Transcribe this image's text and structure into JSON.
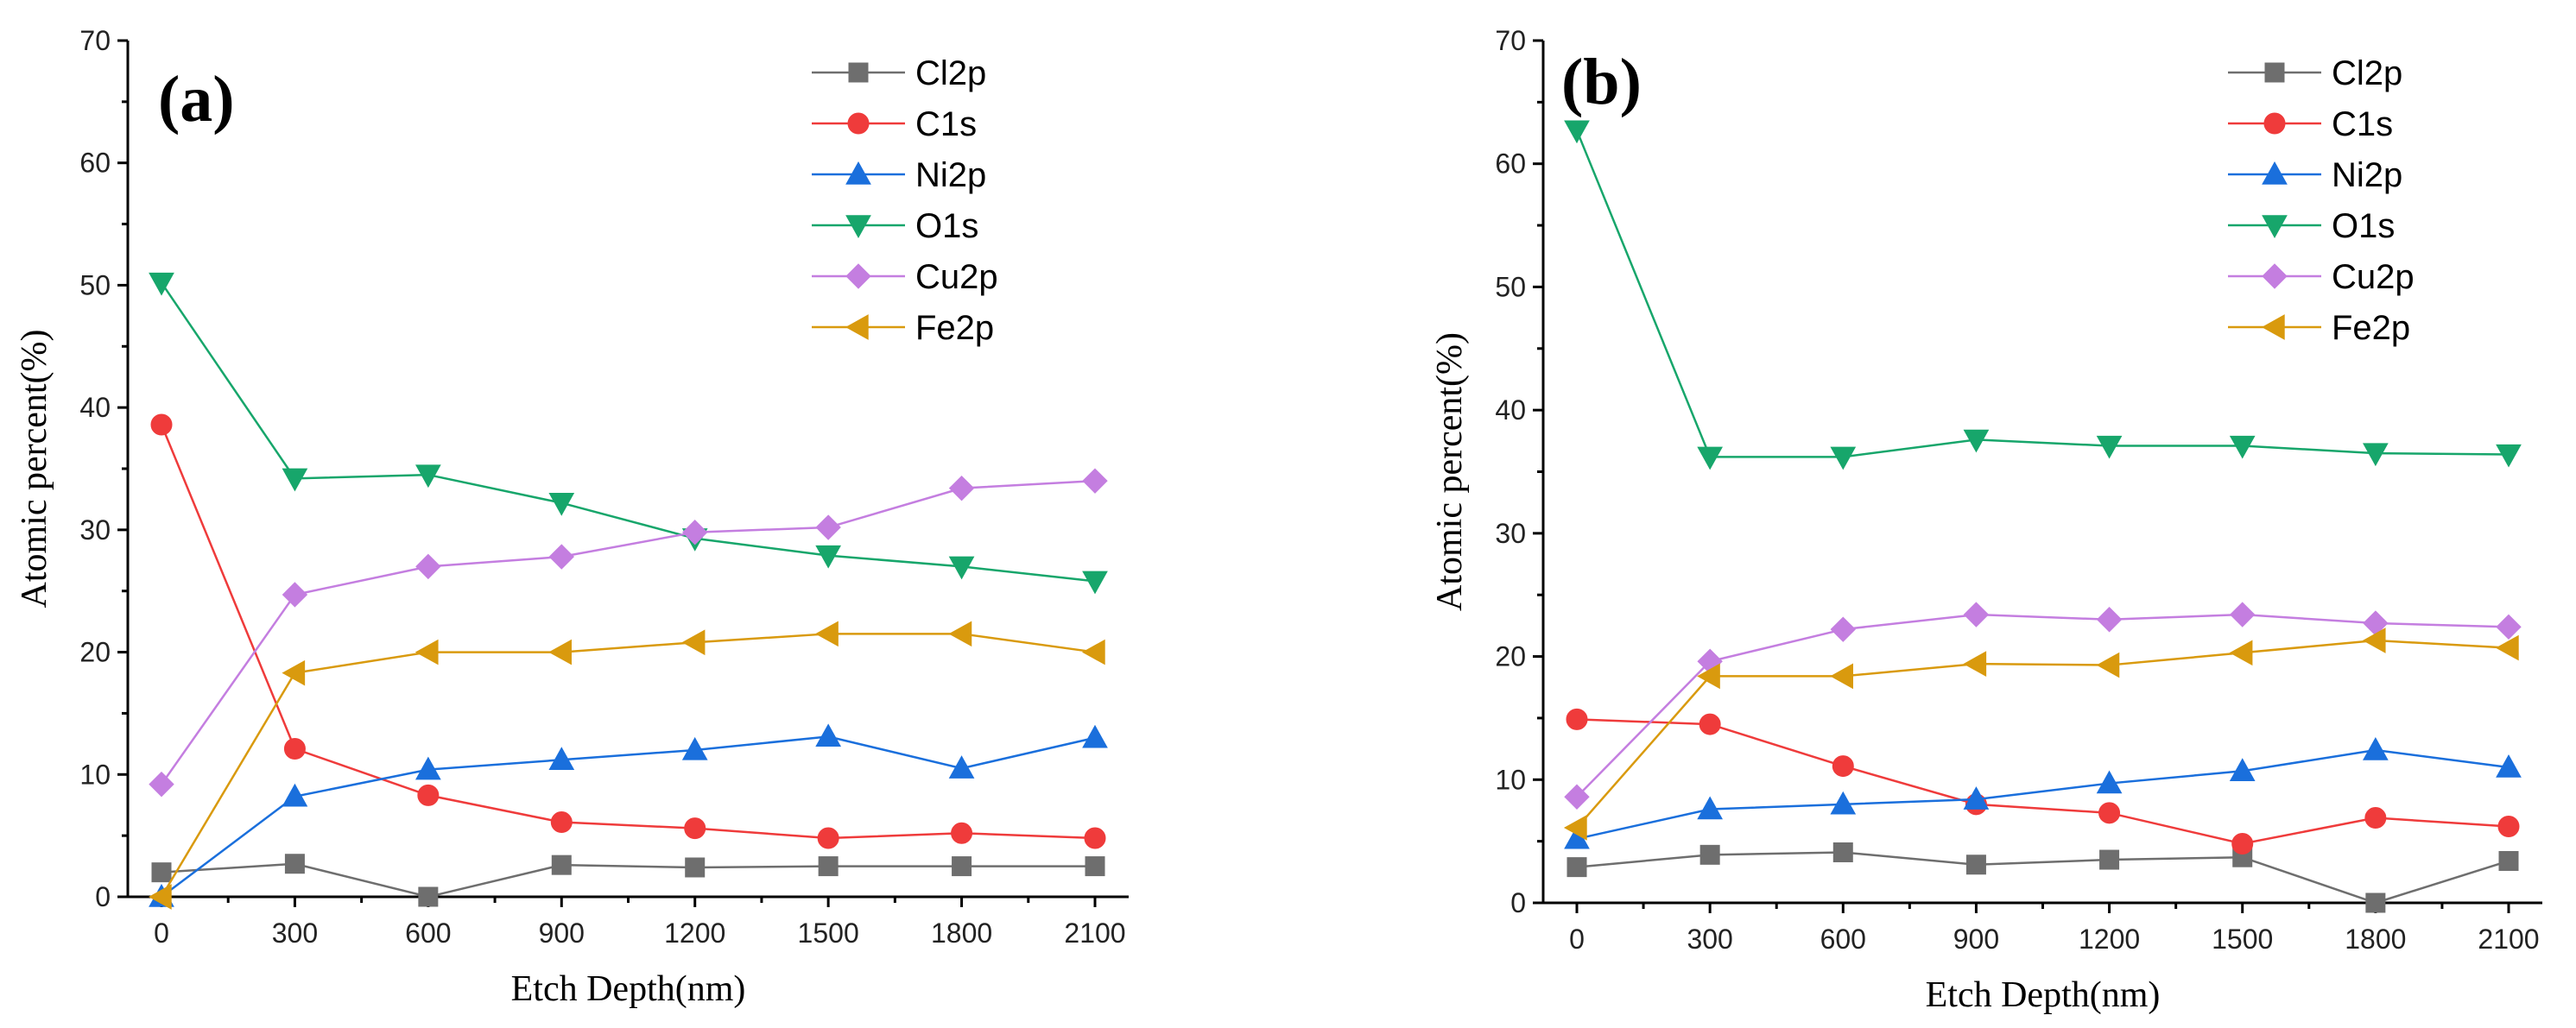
{
  "series_styles": [
    {
      "name": "Cl2p",
      "color": "#6e6e6e",
      "marker": "square"
    },
    {
      "name": "C1s",
      "color": "#ef3b3b",
      "marker": "circle"
    },
    {
      "name": "Ni2p",
      "color": "#1a6fdc",
      "marker": "triangle-up"
    },
    {
      "name": "O1s",
      "color": "#17a66b",
      "marker": "triangle-down"
    },
    {
      "name": "Cu2p",
      "color": "#c47ee0",
      "marker": "diamond"
    },
    {
      "name": "Fe2p",
      "color": "#d99a0e",
      "marker": "triangle-left"
    }
  ],
  "chart_data": [
    {
      "type": "line",
      "panel_label": "(a)",
      "xlabel": "Etch Depth(nm)",
      "ylabel": "Atomic percent(%)",
      "x": [
        0,
        300,
        600,
        900,
        1200,
        1500,
        1800,
        2100
      ],
      "x_tick_labels": [
        "0",
        "300",
        "600",
        "900",
        "1200",
        "1500",
        "1800",
        "2100"
      ],
      "ylim": [
        0,
        70
      ],
      "y_tick_labels": [
        "0",
        "10",
        "20",
        "30",
        "40",
        "50",
        "60",
        "70"
      ],
      "legend_position": "top-right",
      "series": [
        {
          "name": "Cl2p",
          "values": [
            2.0,
            2.7,
            0.0,
            2.6,
            2.4,
            2.5,
            2.5,
            2.5
          ]
        },
        {
          "name": "C1s",
          "values": [
            38.6,
            12.1,
            8.3,
            6.1,
            5.6,
            4.8,
            5.2,
            4.8
          ]
        },
        {
          "name": "Ni2p",
          "values": [
            0.0,
            8.2,
            10.4,
            11.2,
            12.0,
            13.1,
            10.5,
            13.0
          ]
        },
        {
          "name": "O1s",
          "values": [
            50.2,
            34.2,
            34.5,
            32.2,
            29.3,
            27.9,
            27.0,
            25.8
          ]
        },
        {
          "name": "Cu2p",
          "values": [
            9.2,
            24.7,
            27.0,
            27.8,
            29.8,
            30.2,
            33.4,
            34.0
          ]
        },
        {
          "name": "Fe2p",
          "values": [
            0.0,
            18.3,
            20.0,
            20.0,
            20.8,
            21.5,
            21.5,
            20.0
          ]
        }
      ]
    },
    {
      "type": "line",
      "panel_label": "(b)",
      "xlabel": "Etch Depth(nm)",
      "ylabel": "Atomic percent(%)",
      "x": [
        0,
        300,
        600,
        900,
        1200,
        1500,
        1800,
        2100
      ],
      "x_tick_labels": [
        "0",
        "300",
        "600",
        "900",
        "1200",
        "1500",
        "1800",
        "2100"
      ],
      "ylim": [
        0,
        70
      ],
      "y_tick_labels": [
        "0",
        "10",
        "20",
        "30",
        "40",
        "50",
        "60",
        "70"
      ],
      "legend_position": "top-right",
      "series": [
        {
          "name": "Cl2p",
          "values": [
            2.9,
            3.9,
            4.1,
            3.1,
            3.5,
            3.7,
            0.0,
            3.4
          ]
        },
        {
          "name": "C1s",
          "values": [
            14.9,
            14.5,
            11.1,
            8.0,
            7.3,
            4.8,
            6.9,
            6.2
          ]
        },
        {
          "name": "Ni2p",
          "values": [
            5.2,
            7.6,
            8.0,
            8.4,
            9.7,
            10.7,
            12.4,
            11.0
          ]
        },
        {
          "name": "O1s",
          "values": [
            62.7,
            36.2,
            36.2,
            37.6,
            37.1,
            37.1,
            36.5,
            36.4
          ]
        },
        {
          "name": "Cu2p",
          "values": [
            8.6,
            19.6,
            22.2,
            23.4,
            23.0,
            23.4,
            22.7,
            22.4
          ]
        },
        {
          "name": "Fe2p",
          "values": [
            6.1,
            18.4,
            18.4,
            19.4,
            19.3,
            20.3,
            21.3,
            20.7
          ]
        }
      ]
    }
  ]
}
